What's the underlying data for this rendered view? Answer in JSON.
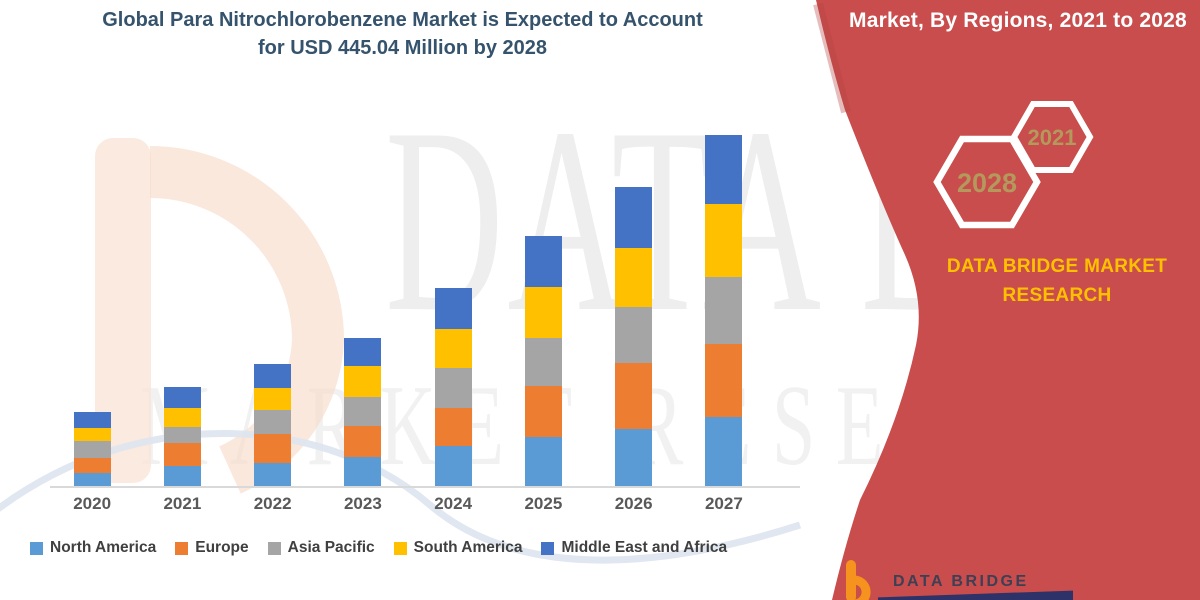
{
  "title": {
    "line1": "Global Para Nitrochlorobenzene Market is Expected to Account",
    "line2": "for USD 445.04 Million by 2028",
    "color": "#35536C"
  },
  "banner": {
    "background": "#C84D4C",
    "heading": "Market, By Regions, 2021 to 2028",
    "hexagons": [
      {
        "label": "2028"
      },
      {
        "label": "2021"
      }
    ],
    "hexagon_label_color": "#B5985C",
    "brand": {
      "line1": "DATA BRIDGE MARKET",
      "line2": "RESEARCH",
      "color": "#FFC000"
    }
  },
  "chart_data": {
    "type": "bar",
    "stacked": true,
    "title": "Global Para Nitrochlorobenzene Market is Expected to Account for USD 445.04 Million by 2028",
    "categories": [
      "2020",
      "2021",
      "2022",
      "2023",
      "2024",
      "2025",
      "2026",
      "2027"
    ],
    "series": [
      {
        "name": "North America",
        "color": "#5B9BD5",
        "values": [
          14,
          21,
          24,
          30,
          41,
          50,
          58,
          70
        ]
      },
      {
        "name": "Europe",
        "color": "#ED7D31",
        "values": [
          15,
          23,
          29,
          31,
          38,
          51,
          66,
          73
        ]
      },
      {
        "name": "Asia Pacific",
        "color": "#A5A5A5",
        "values": [
          17,
          16,
          24,
          29,
          40,
          48,
          56,
          67
        ]
      },
      {
        "name": "South America",
        "color": "#FFC000",
        "values": [
          13,
          19,
          22,
          31,
          39,
          51,
          59,
          73
        ]
      },
      {
        "name": "Middle East and Africa",
        "color": "#4472C4",
        "values": [
          16,
          21,
          24,
          28,
          41,
          51,
          61,
          69
        ]
      }
    ],
    "stack_totals": [
      75,
      100,
      123,
      149,
      199,
      251,
      300,
      352
    ],
    "value_units": "relative height (no y-axis values shown in figure)",
    "xlabel": "",
    "ylabel": "",
    "y_axis_visible": false,
    "grid": false,
    "legend_position": "bottom",
    "x_tick_color": "#595959",
    "axis_line_color": "#D9D9D9"
  },
  "watermarks": {
    "primary": "DATA BRIDGE",
    "secondary": "MARKET RESEARCH"
  },
  "footer_logo": {
    "brand": "DATA BRIDGE",
    "accent_color": "#F6921E",
    "text_color": "#3D3F55"
  }
}
